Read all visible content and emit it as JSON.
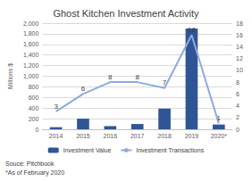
{
  "chart_data": {
    "type": "bar",
    "title": "Ghost Kitchen Investment Activity",
    "categories": [
      "2014",
      "2015",
      "2016",
      "2017",
      "2018",
      "2019",
      "2020*"
    ],
    "series": [
      {
        "name": "Investment Value",
        "type": "bar",
        "color": "#2f5597",
        "values": [
          40,
          200,
          60,
          100,
          390,
          1900,
          90
        ]
      },
      {
        "name": "Investment Transactions",
        "type": "line",
        "color": "#8faadc",
        "axis": "y2",
        "marker": "none",
        "data_labels": true,
        "values": [
          3,
          6,
          8,
          8,
          7,
          16,
          1
        ]
      }
    ],
    "y_label": "Millions $",
    "ylim": [
      0,
      2000
    ],
    "yticks": [
      0,
      200,
      400,
      600,
      800,
      1000,
      1200,
      1400,
      1600,
      1800,
      2000
    ],
    "y2lim": [
      0,
      18
    ],
    "y2ticks": [
      0,
      2,
      4,
      6,
      8,
      10,
      12,
      14,
      16,
      18
    ],
    "grid": true,
    "legend": "bottom",
    "annotations": [
      "Souce: Pitchbook",
      "*As of February 2020"
    ]
  }
}
